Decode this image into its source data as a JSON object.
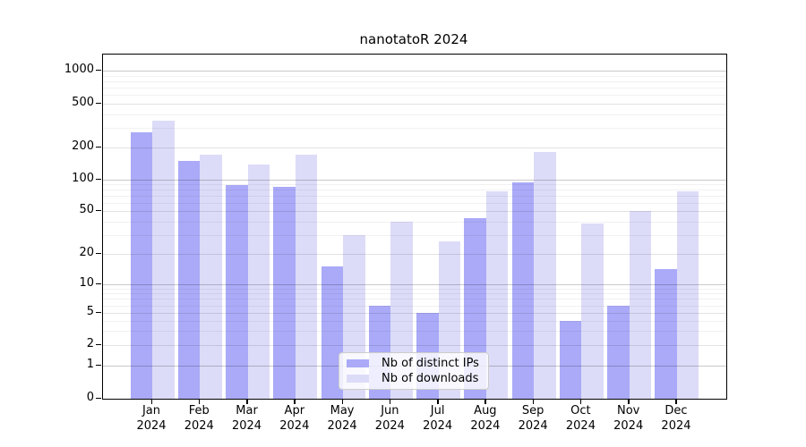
{
  "chart_data": {
    "type": "bar",
    "title": "nanotatoR 2024",
    "categories": [
      "Jan 2024",
      "Feb 2024",
      "Mar 2024",
      "Apr 2024",
      "May 2024",
      "Jun 2024",
      "Jul 2024",
      "Aug 2024",
      "Sep 2024",
      "Oct 2024",
      "Nov 2024",
      "Dec 2024"
    ],
    "series": [
      {
        "name": "Nb of distinct IPs",
        "color": "#aaaaf8",
        "values": [
          275,
          150,
          88,
          85,
          15,
          6,
          5,
          43,
          95,
          4,
          6,
          14
        ]
      },
      {
        "name": "Nb of downloads",
        "color": "#dcdcf8",
        "values": [
          350,
          170,
          140,
          172,
          30,
          40,
          26,
          78,
          180,
          38,
          50,
          77
        ]
      }
    ],
    "yticks": [
      0,
      1,
      2,
      5,
      10,
      20,
      50,
      100,
      200,
      500,
      1000
    ],
    "yscale": "log-like",
    "ylim": [
      0,
      1300
    ],
    "xlabel": "",
    "ylabel": "",
    "grid": true,
    "legend_position": "lower center"
  },
  "colors": {
    "bar_ips": "#aaaaf8",
    "bar_downloads": "#dcdcf8",
    "grid_decade": "rgba(0,0,0,0.21)",
    "grid_major": "rgba(0,0,0,0.11)",
    "grid_minor": "rgba(0,0,0,0.055)",
    "spine": "#000000",
    "legend_border": "#cccccc"
  }
}
